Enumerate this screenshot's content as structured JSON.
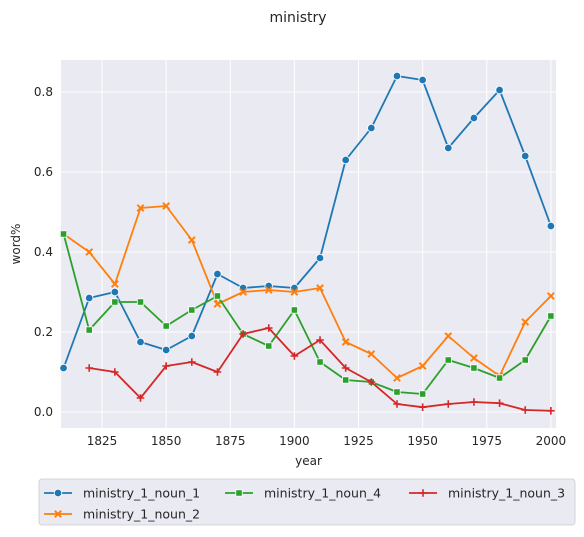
{
  "chart_data": {
    "type": "line",
    "title": "ministry",
    "xlabel": "year",
    "ylabel": "word%",
    "xlim": [
      1809,
      2002
    ],
    "ylim": [
      -0.04,
      0.88
    ],
    "xticks": [
      1825,
      1850,
      1875,
      1900,
      1925,
      1950,
      1975,
      2000
    ],
    "xtick_labels": [
      "1825",
      "1850",
      "1875",
      "1900",
      "1925",
      "1950",
      "1975",
      "2000"
    ],
    "yticks": [
      0.0,
      0.2,
      0.4,
      0.6,
      0.8
    ],
    "ytick_labels": [
      "0.0",
      "0.2",
      "0.4",
      "0.6",
      "0.8"
    ],
    "grid": true,
    "legend_position": "bottom",
    "series": [
      {
        "name": "ministry_1_noun_1",
        "color": "#1f77b4",
        "marker": "circle",
        "x": [
          1810,
          1820,
          1830,
          1840,
          1850,
          1860,
          1870,
          1880,
          1890,
          1900,
          1910,
          1920,
          1930,
          1940,
          1950,
          1960,
          1970,
          1980,
          1990,
          2000
        ],
        "values": [
          0.11,
          0.285,
          0.3,
          0.175,
          0.155,
          0.19,
          0.345,
          0.31,
          0.315,
          0.31,
          0.385,
          0.63,
          0.71,
          0.84,
          0.83,
          0.66,
          0.735,
          0.805,
          0.64,
          0.465
        ]
      },
      {
        "name": "ministry_1_noun_2",
        "color": "#ff7f0e",
        "marker": "x",
        "x": [
          1810,
          1820,
          1830,
          1840,
          1850,
          1860,
          1870,
          1880,
          1890,
          1900,
          1910,
          1920,
          1930,
          1940,
          1950,
          1960,
          1970,
          1980,
          1990,
          2000
        ],
        "values": [
          0.445,
          0.4,
          0.32,
          0.51,
          0.515,
          0.43,
          0.27,
          0.3,
          0.305,
          0.3,
          0.31,
          0.175,
          0.145,
          0.085,
          0.115,
          0.19,
          0.135,
          0.09,
          0.225,
          0.29
        ]
      },
      {
        "name": "ministry_1_noun_4",
        "color": "#2ca02c",
        "marker": "square",
        "x": [
          1810,
          1820,
          1830,
          1840,
          1850,
          1860,
          1870,
          1880,
          1890,
          1900,
          1910,
          1920,
          1930,
          1940,
          1950,
          1960,
          1970,
          1980,
          1990,
          2000
        ],
        "values": [
          0.445,
          0.205,
          0.275,
          0.275,
          0.215,
          0.255,
          0.29,
          0.195,
          0.165,
          0.255,
          0.125,
          0.08,
          0.075,
          0.05,
          0.045,
          0.13,
          0.11,
          0.085,
          0.13,
          0.24
        ]
      },
      {
        "name": "ministry_1_noun_3",
        "color": "#d62728",
        "marker": "plus",
        "x": [
          1820,
          1830,
          1840,
          1850,
          1860,
          1870,
          1880,
          1890,
          1900,
          1910,
          1920,
          1930,
          1940,
          1950,
          1960,
          1970,
          1980,
          1990,
          2000
        ],
        "values": [
          0.11,
          0.1,
          0.035,
          0.115,
          0.125,
          0.1,
          0.195,
          0.21,
          0.14,
          0.18,
          0.11,
          0.075,
          0.02,
          0.012,
          0.02,
          0.025,
          0.022,
          0.005,
          0.003
        ]
      }
    ],
    "legend_order": [
      "ministry_1_noun_1",
      "ministry_1_noun_4",
      "ministry_1_noun_3",
      "ministry_1_noun_2"
    ]
  }
}
